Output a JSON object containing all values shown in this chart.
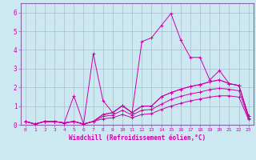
{
  "xlabel": "Windchill (Refroidissement éolien,°C)",
  "bg_color": "#cce8f0",
  "line_color": "#cc00aa",
  "grid_color": "#aabbd0",
  "spine_color": "#8866aa",
  "xlim": [
    -0.5,
    23.5
  ],
  "ylim": [
    0,
    6.5
  ],
  "xticks": [
    0,
    1,
    2,
    3,
    4,
    5,
    6,
    7,
    8,
    9,
    10,
    11,
    12,
    13,
    14,
    15,
    16,
    17,
    18,
    19,
    20,
    21,
    22,
    23
  ],
  "yticks": [
    0,
    1,
    2,
    3,
    4,
    5,
    6
  ],
  "lines": [
    {
      "x": [
        0,
        1,
        2,
        3,
        4,
        5,
        6,
        7,
        8,
        9,
        10,
        11,
        12,
        13,
        14,
        15,
        16,
        17,
        18,
        19,
        20,
        21,
        22,
        23
      ],
      "y": [
        0.18,
        0.04,
        0.18,
        0.18,
        0.1,
        0.18,
        0.04,
        0.18,
        0.55,
        0.65,
        1.02,
        0.65,
        4.45,
        4.65,
        5.3,
        5.95,
        4.55,
        3.6,
        3.6,
        2.4,
        2.9,
        2.2,
        2.1,
        0.45
      ]
    },
    {
      "x": [
        0,
        1,
        2,
        3,
        4,
        5,
        6,
        7,
        8,
        9,
        10,
        11,
        12,
        13,
        14,
        15,
        16,
        17,
        18,
        19,
        20,
        21,
        22,
        23
      ],
      "y": [
        0.18,
        0.04,
        0.18,
        0.18,
        0.1,
        1.55,
        0.04,
        3.8,
        1.3,
        0.65,
        1.02,
        0.65,
        1.0,
        1.0,
        1.5,
        1.72,
        1.9,
        2.05,
        2.15,
        2.3,
        2.4,
        2.2,
        2.1,
        0.45
      ]
    },
    {
      "x": [
        0,
        1,
        2,
        3,
        4,
        5,
        6,
        7,
        8,
        9,
        10,
        11,
        12,
        13,
        14,
        15,
        16,
        17,
        18,
        19,
        20,
        21,
        22,
        23
      ],
      "y": [
        0.18,
        0.04,
        0.18,
        0.18,
        0.1,
        0.18,
        0.04,
        0.18,
        0.55,
        0.65,
        1.02,
        0.65,
        1.0,
        1.0,
        1.5,
        1.72,
        1.9,
        2.05,
        2.15,
        2.3,
        2.4,
        2.2,
        2.1,
        0.45
      ]
    },
    {
      "x": [
        0,
        1,
        2,
        3,
        4,
        5,
        6,
        7,
        8,
        9,
        10,
        11,
        12,
        13,
        14,
        15,
        16,
        17,
        18,
        19,
        20,
        21,
        22,
        23
      ],
      "y": [
        0.18,
        0.04,
        0.18,
        0.18,
        0.1,
        0.18,
        0.04,
        0.18,
        0.45,
        0.52,
        0.78,
        0.52,
        0.78,
        0.82,
        1.1,
        1.35,
        1.52,
        1.65,
        1.75,
        1.88,
        1.95,
        1.9,
        1.82,
        0.35
      ]
    },
    {
      "x": [
        0,
        1,
        2,
        3,
        4,
        5,
        6,
        7,
        8,
        9,
        10,
        11,
        12,
        13,
        14,
        15,
        16,
        17,
        18,
        19,
        20,
        21,
        22,
        23
      ],
      "y": [
        0.18,
        0.04,
        0.18,
        0.18,
        0.1,
        0.18,
        0.04,
        0.18,
        0.32,
        0.38,
        0.55,
        0.38,
        0.55,
        0.6,
        0.82,
        1.0,
        1.15,
        1.28,
        1.38,
        1.48,
        1.55,
        1.55,
        1.48,
        0.28
      ]
    }
  ]
}
